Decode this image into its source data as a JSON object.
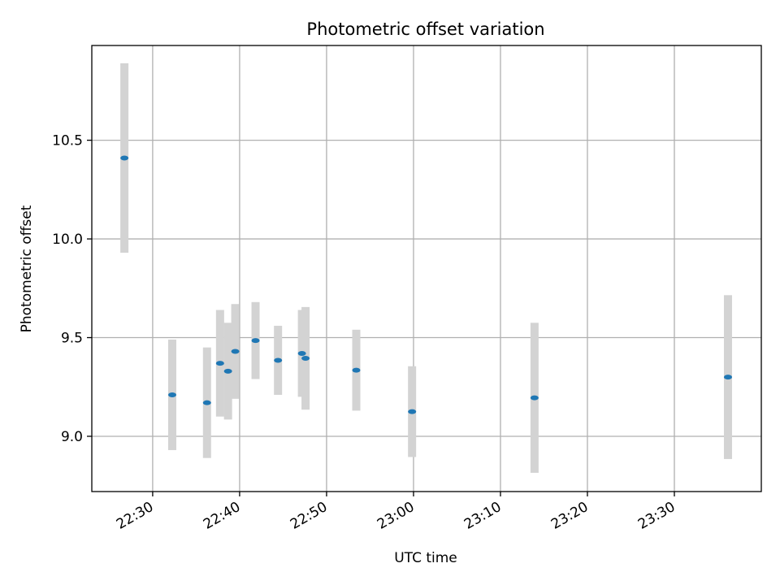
{
  "chart_data": {
    "type": "scatter",
    "title": "Photometric offset variation",
    "xlabel": "UTC time",
    "ylabel": "Photometric offset",
    "x_axis": {
      "kind": "time",
      "unit": "HH:MM UTC",
      "range": [
        "22:23",
        "23:40"
      ],
      "ticks": [
        "22:30",
        "22:40",
        "22:50",
        "23:00",
        "23:10",
        "23:20",
        "23:30"
      ]
    },
    "y_axis": {
      "range": [
        8.72,
        10.98
      ],
      "ticks": [
        9.0,
        9.5,
        10.0,
        10.5
      ],
      "tick_labels": [
        "9.0",
        "9.5",
        "10.0",
        "10.5"
      ]
    },
    "grid": true,
    "legend": "none",
    "colors": {
      "point": "#1f77b4",
      "errorbar": "#d3d3d3",
      "grid": "#b0b0b0"
    },
    "series": [
      {
        "points": [
          {
            "x": "22:26:45",
            "y": 10.41,
            "err": 0.48
          },
          {
            "x": "22:32:15",
            "y": 9.21,
            "err": 0.28
          },
          {
            "x": "22:36:15",
            "y": 9.17,
            "err": 0.28
          },
          {
            "x": "22:37:45",
            "y": 9.37,
            "err": 0.27
          },
          {
            "x": "22:38:40",
            "y": 9.33,
            "err": 0.245
          },
          {
            "x": "22:39:30",
            "y": 9.43,
            "err": 0.24
          },
          {
            "x": "22:41:50",
            "y": 9.485,
            "err": 0.195
          },
          {
            "x": "22:44:25",
            "y": 9.385,
            "err": 0.175
          },
          {
            "x": "22:47:10",
            "y": 9.42,
            "err": 0.22
          },
          {
            "x": "22:47:35",
            "y": 9.395,
            "err": 0.26
          },
          {
            "x": "22:53:25",
            "y": 9.335,
            "err": 0.205
          },
          {
            "x": "22:59:50",
            "y": 9.125,
            "err": 0.23
          },
          {
            "x": "23:13:55",
            "y": 9.195,
            "err": 0.38
          },
          {
            "x": "23:36:10",
            "y": 9.3,
            "err": 0.415
          }
        ]
      }
    ]
  }
}
